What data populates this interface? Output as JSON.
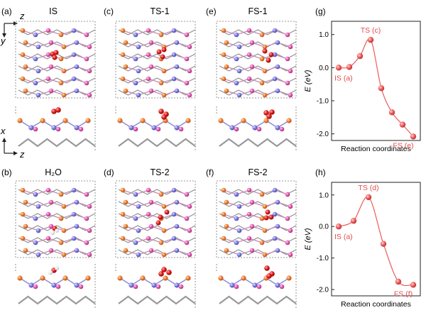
{
  "panels": [
    {
      "tag": "(a)",
      "title": "IS",
      "struct": 0
    },
    {
      "tag": "(c)",
      "title": "TS-1",
      "struct": 1
    },
    {
      "tag": "(e)",
      "title": "FS-1",
      "struct": 2
    },
    {
      "tag": "(b)",
      "title": "H₂O",
      "struct": 3
    },
    {
      "tag": "(d)",
      "title": "TS-2",
      "struct": 4
    },
    {
      "tag": "(f)",
      "title": "FS-2",
      "struct": 5
    }
  ],
  "axes": {
    "top_y": "y",
    "top_z": "z",
    "bottom_x": "x",
    "bottom_z": "z"
  },
  "colors": {
    "pink": "#e25ab0",
    "blue": "#7b7be0",
    "orange": "#ef7c2a",
    "red": "#e02020",
    "white": "#f2f2f2",
    "curve": "#ee5b5b"
  },
  "chart_data": [
    {
      "type": "line",
      "tag": "(g)",
      "xlabel": "Reaction coordinates",
      "ylabel": "E (eV)",
      "ylim": [
        -2.2,
        1.4
      ],
      "yticks": [
        "1.0",
        "0.0",
        "-1.0",
        "-2.0"
      ],
      "ytick_values": [
        1.0,
        0.0,
        -1.0,
        -2.0
      ],
      "x": [
        0,
        1,
        2,
        3,
        4,
        5,
        6,
        7
      ],
      "values": [
        0.0,
        0.02,
        0.35,
        0.84,
        -0.62,
        -1.35,
        -1.72,
        -2.08
      ],
      "annotations": [
        "IS (a)",
        "TS (c)",
        "FS (e)"
      ]
    },
    {
      "type": "line",
      "tag": "(h)",
      "xlabel": "Reaction coordinates",
      "ylabel": "E (eV)",
      "ylim": [
        -2.2,
        1.4
      ],
      "yticks": [
        "1.0",
        "0.0",
        "-1.0",
        "-2.0"
      ],
      "ytick_values": [
        1.0,
        0.0,
        -1.0,
        -2.0
      ],
      "x": [
        0,
        1,
        2,
        3,
        4,
        5
      ],
      "values": [
        0.0,
        0.18,
        0.93,
        -0.55,
        -1.75,
        -1.85
      ],
      "annotations": [
        "IS (a)",
        "TS (d)",
        "FS (f)"
      ]
    }
  ]
}
